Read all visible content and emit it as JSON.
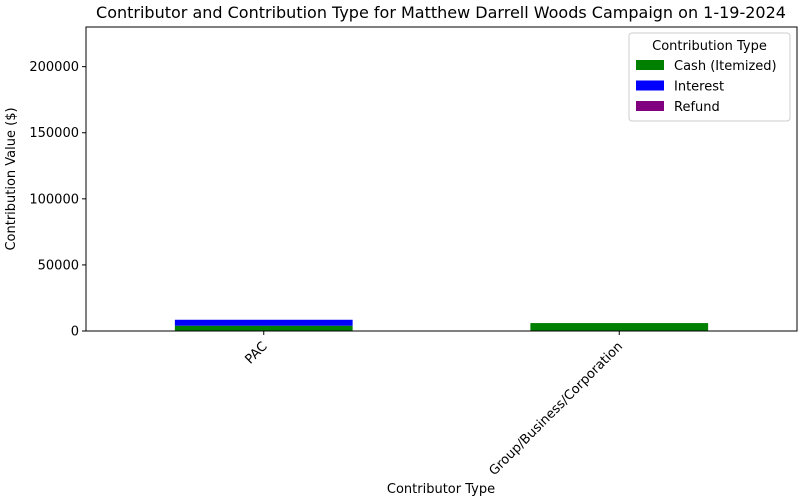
{
  "chart_data": {
    "type": "bar",
    "stacked": true,
    "title": "Contributor and Contribution Type for Matthew Darrell Woods Campaign on 1-19-2024",
    "xlabel": "Contributor Type",
    "ylabel": "Contribution Value ($)",
    "categories": [
      "PAC",
      "Group/Business/Corporation"
    ],
    "ylim": [
      0,
      230000
    ],
    "yticks": [
      0,
      50000,
      100000,
      150000,
      200000
    ],
    "grid": false,
    "legend": {
      "title": "Contribution Type",
      "placement": "top-right"
    },
    "series": [
      {
        "name": "Cash (Itemized)",
        "color": "#008000",
        "values": [
          4000,
          6000
        ]
      },
      {
        "name": "Interest",
        "color": "#0000ff",
        "values": [
          4500,
          0
        ]
      },
      {
        "name": "Refund",
        "color": "#800080",
        "values": [
          0,
          0
        ]
      }
    ]
  }
}
